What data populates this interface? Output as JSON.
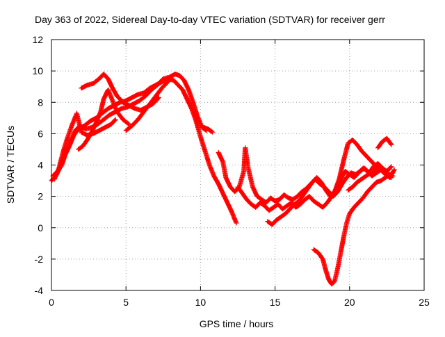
{
  "chart_data": {
    "type": "scatter",
    "title": "Day 363 of 2022, Sidereal Day-to-day VTEC variation (SDTVAR) for receiver gerr",
    "xlabel": "GPS time / hours",
    "ylabel": "SDTVAR / TECUs",
    "xlim": [
      0,
      25
    ],
    "ylim": [
      -4,
      12
    ],
    "xticks": [
      "0",
      "5",
      "10",
      "15",
      "20",
      "25"
    ],
    "yticks": [
      "-4",
      "-2",
      "0",
      "2",
      "4",
      "6",
      "8",
      "10",
      "12"
    ],
    "grid": true,
    "marker": "+",
    "color": "#ff0000",
    "series": [
      {
        "x": [
          0,
          0.3,
          0.6,
          0.9,
          1.2,
          1.5,
          1.8,
          2.2,
          2.6,
          3.0,
          3.4,
          3.8,
          4.2,
          4.6,
          5.0,
          5.4,
          5.8,
          6.2,
          6.6,
          7.0,
          7.4,
          7.8,
          8.2,
          8.5,
          8.8,
          9.1,
          9.4,
          9.7,
          10.0,
          10.3,
          10.6,
          10.9,
          11.2,
          11.5,
          11.8,
          12.1,
          12.4
        ],
        "y": [
          3.0,
          3.3,
          3.9,
          4.6,
          5.2,
          5.9,
          6.3,
          6.5,
          6.8,
          7.0,
          7.3,
          7.6,
          7.8,
          8.0,
          8.1,
          8.3,
          8.5,
          8.6,
          8.9,
          9.1,
          9.3,
          9.5,
          9.4,
          9.1,
          8.8,
          8.2,
          7.6,
          6.8,
          5.8,
          4.9,
          4.0,
          3.3,
          2.8,
          2.2,
          1.6,
          1.0,
          0.3
        ]
      },
      {
        "x": [
          0.1,
          0.4,
          0.7,
          1.0,
          1.3,
          1.6,
          1.9,
          2.3,
          2.7,
          3.1,
          3.5,
          3.9,
          4.3,
          4.7,
          5.1,
          5.5,
          5.9,
          6.3,
          6.7,
          7.1,
          7.5,
          7.9,
          8.3,
          8.6,
          8.9,
          9.2,
          9.5,
          9.8,
          10.1,
          10.4
        ],
        "y": [
          3.3,
          3.6,
          4.0,
          4.9,
          5.5,
          6.2,
          6.5,
          6.3,
          6.4,
          6.6,
          6.9,
          7.2,
          7.4,
          7.6,
          7.7,
          7.9,
          8.1,
          8.4,
          8.8,
          9.1,
          9.5,
          9.6,
          9.8,
          9.7,
          9.4,
          8.8,
          8.0,
          7.1,
          6.4,
          6.2
        ]
      },
      {
        "x": [
          0.2,
          0.5,
          0.8,
          1.1,
          1.4,
          1.7,
          2.0,
          2.4,
          2.8,
          3.2,
          3.6,
          4.0,
          4.3
        ],
        "y": [
          3.1,
          3.8,
          4.9,
          5.8,
          6.6,
          7.3,
          6.1,
          5.9,
          6.0,
          6.2,
          6.4,
          6.6,
          6.9
        ]
      },
      {
        "x": [
          1.8,
          2.1,
          2.4,
          2.7,
          3.0,
          3.3,
          3.5,
          3.8,
          4.1,
          4.4,
          4.8,
          5.2
        ],
        "y": [
          5.0,
          5.2,
          5.6,
          6.1,
          6.7,
          7.4,
          8.2,
          8.8,
          8.1,
          7.4,
          6.9,
          6.6
        ]
      },
      {
        "x": [
          2.0,
          2.4,
          2.8,
          3.2,
          3.5,
          3.8,
          4.1,
          4.4,
          4.8,
          5.2,
          5.6,
          6.0,
          6.4,
          6.8,
          7.2
        ],
        "y": [
          8.9,
          9.1,
          9.2,
          9.5,
          9.8,
          9.5,
          8.9,
          8.4,
          8.0,
          7.8,
          7.6,
          7.5,
          7.7,
          7.9,
          8.3
        ]
      },
      {
        "x": [
          5.0,
          5.4,
          5.8,
          6.2,
          6.6,
          7.0,
          7.4,
          7.8,
          8.1
        ],
        "y": [
          6.2,
          6.5,
          6.9,
          7.4,
          7.9,
          8.4,
          8.9,
          9.3,
          9.7
        ]
      },
      {
        "x": [
          10.2,
          10.5,
          10.8
        ],
        "y": [
          6.4,
          6.3,
          6.1
        ]
      },
      {
        "x": [
          11.2,
          11.5,
          11.7,
          12.0,
          12.3,
          12.6,
          12.9,
          13.0,
          13.2,
          13.5,
          13.8,
          14.1,
          14.4,
          14.7,
          15.0,
          15.3,
          15.6,
          15.9,
          16.2,
          16.5,
          16.8,
          17.1,
          17.4,
          17.7,
          18.0,
          18.3,
          18.6,
          18.9,
          19.2,
          19.5,
          19.8,
          20.1,
          20.4,
          20.7,
          21.0,
          21.3,
          21.6,
          21.9,
          22.2,
          22.5,
          22.8
        ],
        "y": [
          4.8,
          4.2,
          3.2,
          2.6,
          2.3,
          2.6,
          3.6,
          5.1,
          3.8,
          2.6,
          2.0,
          1.8,
          1.6,
          1.9,
          1.7,
          1.8,
          2.1,
          1.9,
          1.8,
          2.0,
          2.3,
          2.5,
          2.8,
          3.1,
          2.8,
          2.6,
          2.3,
          2.0,
          2.3,
          2.8,
          3.2,
          3.5,
          3.4,
          3.6,
          3.8,
          3.5,
          3.9,
          4.1,
          3.8,
          3.6,
          3.9
        ]
      },
      {
        "x": [
          12.5,
          12.8,
          13.1,
          13.4,
          13.7,
          14.0,
          14.3,
          14.6,
          14.9,
          15.2,
          15.5,
          15.8,
          16.1,
          16.4,
          16.7,
          17.0,
          17.3,
          17.6,
          17.9,
          18.2,
          18.5,
          18.8,
          19.1,
          19.4,
          19.7,
          20.0,
          20.3,
          20.6,
          20.9,
          21.2,
          21.5,
          21.8,
          22.1,
          22.4,
          22.7,
          23.0
        ],
        "y": [
          2.6,
          2.2,
          1.8,
          1.5,
          1.3,
          1.6,
          1.4,
          1.1,
          1.3,
          1.5,
          1.2,
          1.4,
          1.6,
          1.3,
          1.5,
          1.8,
          2.0,
          1.7,
          1.5,
          1.3,
          1.6,
          2.0,
          2.5,
          3.1,
          3.6,
          3.4,
          3.2,
          3.5,
          3.8,
          3.6,
          3.3,
          3.5,
          3.7,
          3.4,
          3.2,
          3.7
        ]
      },
      {
        "x": [
          14.5,
          14.8,
          15.1,
          15.4,
          15.7,
          16.0,
          16.3,
          16.6,
          16.9,
          17.2,
          17.5,
          17.8,
          18.1,
          18.4,
          18.7,
          19.0,
          19.3,
          19.6,
          19.9,
          20.2,
          20.5,
          20.8,
          21.1,
          21.4,
          21.7,
          22.0,
          22.3,
          22.6,
          22.8
        ],
        "y": [
          0.4,
          0.2,
          0.5,
          0.7,
          0.9,
          1.2,
          1.5,
          1.7,
          2.1,
          2.5,
          2.9,
          3.2,
          2.9,
          2.4,
          2.0,
          2.3,
          3.1,
          4.3,
          5.4,
          5.6,
          5.3,
          4.9,
          4.6,
          4.3,
          4.0,
          3.8,
          3.5,
          3.3,
          3.2
        ]
      },
      {
        "x": [
          19.9,
          20.2,
          20.5,
          20.8,
          21.1,
          21.4,
          21.7,
          22.0,
          22.3,
          22.6,
          22.9
        ],
        "y": [
          2.4,
          2.6,
          2.9,
          3.1,
          3.3,
          3.5,
          3.7,
          3.9,
          3.6,
          3.4,
          3.3
        ]
      },
      {
        "x": [
          21.9,
          22.2,
          22.5,
          22.8
        ],
        "y": [
          5.1,
          5.5,
          5.7,
          5.3
        ]
      },
      {
        "x": [
          17.6,
          17.9,
          18.2,
          18.4,
          18.6,
          18.8,
          19.0,
          19.2,
          19.4,
          19.6,
          19.8,
          20.0,
          20.3,
          20.6,
          20.9,
          21.2,
          21.5,
          21.8,
          22.1,
          22.4,
          22.7
        ],
        "y": [
          -1.4,
          -1.6,
          -2.0,
          -2.7,
          -3.3,
          -3.6,
          -3.4,
          -2.6,
          -1.6,
          -0.6,
          0.3,
          0.9,
          1.3,
          1.6,
          1.9,
          2.3,
          2.6,
          2.9,
          3.0,
          3.2,
          3.4
        ]
      }
    ]
  }
}
